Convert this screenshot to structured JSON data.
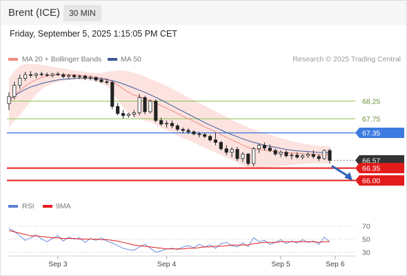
{
  "header": {
    "instrument": "Brent (ICE)",
    "timeframe": "30 MIN"
  },
  "datetime": "Friday, September 5, 2025 1:15:05 PM CET",
  "legend": {
    "main": [
      {
        "label": "MA 20 + Bollinger Bands",
        "color": "#f28b82"
      },
      {
        "label": "MA 50",
        "color": "#3c5a99"
      }
    ],
    "rsi": [
      {
        "label": "RSI",
        "color": "#5b7fd6"
      },
      {
        "label": "9MA",
        "color": "#e31b1b"
      }
    ]
  },
  "credit": "Research © 2025 Trading Central",
  "chart_data": {
    "type": "line",
    "main_panel": {
      "ylim": [
        65.6,
        69.2
      ],
      "levels": [
        {
          "value": 68.25,
          "label": "68.25",
          "style": "green-line",
          "color": "#8bc34a"
        },
        {
          "value": 67.75,
          "label": "67.75",
          "style": "green-line",
          "color": "#8bc34a"
        },
        {
          "value": 67.35,
          "label": "67.35",
          "style": "pivot",
          "color": "#3d7be0"
        },
        {
          "value": 66.57,
          "label": "66.57",
          "style": "last-price",
          "color": "#333333"
        },
        {
          "value": 66.35,
          "label": "66.35",
          "style": "support",
          "color": "#e31b1b"
        },
        {
          "value": 66.0,
          "label": "66.00",
          "style": "support",
          "color": "#e31b1b"
        }
      ],
      "arrow_direction": "down",
      "candles": [
        [
          68.18,
          68.5,
          68.0,
          68.38
        ],
        [
          68.38,
          68.8,
          68.3,
          68.7
        ],
        [
          68.7,
          69.0,
          68.6,
          68.9
        ],
        [
          68.9,
          69.08,
          68.82,
          69.0
        ],
        [
          69.0,
          69.1,
          68.92,
          68.98
        ],
        [
          68.98,
          69.06,
          68.9,
          69.02
        ],
        [
          69.02,
          69.08,
          68.95,
          69.0
        ],
        [
          69.0,
          69.06,
          68.94,
          68.98
        ],
        [
          68.98,
          69.05,
          68.92,
          69.02
        ],
        [
          69.02,
          69.08,
          68.96,
          69.0
        ],
        [
          69.0,
          69.05,
          68.9,
          68.95
        ],
        [
          68.95,
          69.02,
          68.88,
          68.98
        ],
        [
          68.98,
          69.02,
          68.9,
          68.94
        ],
        [
          68.94,
          69.0,
          68.88,
          68.96
        ],
        [
          68.96,
          69.0,
          68.85,
          68.9
        ],
        [
          68.9,
          68.98,
          68.84,
          68.92
        ],
        [
          68.92,
          68.95,
          68.8,
          68.85
        ],
        [
          68.85,
          68.92,
          68.76,
          68.8
        ],
        [
          68.8,
          68.88,
          68.72,
          68.78
        ],
        [
          68.78,
          68.82,
          68.02,
          68.1
        ],
        [
          68.1,
          68.2,
          67.85,
          67.9
        ],
        [
          67.9,
          68.0,
          67.76,
          67.84
        ],
        [
          67.84,
          67.92,
          67.78,
          67.88
        ],
        [
          67.88,
          68.0,
          67.8,
          67.92
        ],
        [
          67.92,
          68.45,
          67.85,
          68.35
        ],
        [
          68.35,
          68.4,
          67.88,
          67.95
        ],
        [
          67.95,
          68.3,
          67.9,
          68.25
        ],
        [
          68.25,
          68.3,
          67.65,
          67.7
        ],
        [
          67.7,
          67.78,
          67.55,
          67.6
        ],
        [
          67.6,
          67.7,
          67.5,
          67.62
        ],
        [
          67.62,
          67.7,
          67.48,
          67.55
        ],
        [
          67.55,
          67.6,
          67.4,
          67.45
        ],
        [
          67.45,
          67.5,
          67.35,
          67.42
        ],
        [
          67.42,
          67.48,
          67.32,
          67.38
        ],
        [
          67.38,
          67.42,
          67.28,
          67.32
        ],
        [
          67.32,
          67.38,
          67.22,
          67.3
        ],
        [
          67.3,
          67.35,
          67.2,
          67.25
        ],
        [
          67.25,
          67.3,
          67.1,
          67.15
        ],
        [
          67.15,
          67.35,
          67.0,
          67.08
        ],
        [
          67.08,
          67.12,
          66.85,
          66.9
        ],
        [
          66.9,
          67.0,
          66.72,
          66.8
        ],
        [
          66.8,
          66.95,
          66.65,
          66.88
        ],
        [
          66.88,
          66.95,
          66.55,
          66.62
        ],
        [
          66.62,
          66.8,
          66.52,
          66.75
        ],
        [
          66.75,
          66.78,
          66.42,
          66.48
        ],
        [
          66.48,
          66.95,
          66.4,
          66.9
        ],
        [
          66.9,
          67.05,
          66.78,
          67.0
        ],
        [
          67.0,
          67.08,
          66.85,
          66.92
        ],
        [
          66.92,
          67.02,
          66.8,
          66.85
        ],
        [
          66.85,
          66.9,
          66.7,
          66.75
        ],
        [
          66.75,
          66.85,
          66.66,
          66.8
        ],
        [
          66.8,
          66.86,
          66.65,
          66.7
        ],
        [
          66.7,
          66.78,
          66.6,
          66.72
        ],
        [
          66.72,
          66.8,
          66.62,
          66.66
        ],
        [
          66.66,
          66.75,
          66.6,
          66.7
        ],
        [
          66.7,
          66.8,
          66.64,
          66.74
        ],
        [
          66.74,
          66.85,
          66.62,
          66.68
        ],
        [
          66.68,
          66.75,
          66.55,
          66.62
        ],
        [
          66.62,
          66.88,
          66.58,
          66.85
        ],
        [
          66.85,
          66.9,
          66.48,
          66.57
        ]
      ],
      "ma20": [
        68.2,
        68.4,
        68.55,
        68.68,
        68.78,
        68.86,
        68.92,
        68.96,
        68.98,
        69.0,
        69.0,
        69.0,
        68.99,
        68.98,
        68.96,
        68.95,
        68.93,
        68.9,
        68.88,
        68.8,
        68.7,
        68.6,
        68.5,
        68.42,
        68.38,
        68.32,
        68.27,
        68.2,
        68.12,
        68.05,
        67.98,
        67.9,
        67.82,
        67.75,
        67.68,
        67.6,
        67.52,
        67.45,
        67.38,
        67.3,
        67.22,
        67.15,
        67.08,
        67.0,
        66.93,
        66.9,
        66.88,
        66.86,
        66.84,
        66.82,
        66.8,
        66.79,
        66.78,
        66.77,
        66.76,
        66.75,
        66.74,
        66.73,
        66.73,
        66.72
      ],
      "ma50": [
        68.3,
        68.4,
        68.5,
        68.58,
        68.65,
        68.7,
        68.75,
        68.79,
        68.82,
        68.85,
        68.87,
        68.88,
        68.89,
        68.9,
        68.9,
        68.9,
        68.89,
        68.88,
        68.86,
        68.83,
        68.79,
        68.74,
        68.68,
        68.62,
        68.56,
        68.5,
        68.43,
        68.36,
        68.28,
        68.2,
        68.12,
        68.04,
        67.96,
        67.88,
        67.8,
        67.72,
        67.64,
        67.57,
        67.5,
        67.43,
        67.36,
        67.3,
        67.24,
        67.18,
        67.13,
        67.08,
        67.04,
        67.0,
        66.97,
        66.94,
        66.91,
        66.88,
        66.86,
        66.84,
        66.83,
        66.82,
        66.81,
        66.8,
        66.79,
        66.78
      ],
      "bb_upper": [
        68.9,
        69.1,
        69.25,
        69.3,
        69.3,
        69.3,
        69.28,
        69.25,
        69.22,
        69.2,
        69.18,
        69.15,
        69.12,
        69.1,
        69.08,
        69.06,
        69.05,
        69.05,
        69.08,
        69.1,
        69.12,
        69.12,
        69.1,
        69.05,
        69.0,
        68.95,
        68.88,
        68.82,
        68.75,
        68.68,
        68.6,
        68.52,
        68.44,
        68.36,
        68.28,
        68.2,
        68.12,
        68.04,
        67.96,
        67.88,
        67.8,
        67.72,
        67.65,
        67.58,
        67.5,
        67.45,
        67.4,
        67.35,
        67.3,
        67.25,
        67.2,
        67.16,
        67.12,
        67.08,
        67.05,
        67.02,
        67.0,
        66.98,
        66.98,
        66.97
      ],
      "bb_lower": [
        67.5,
        67.7,
        67.85,
        68.05,
        68.25,
        68.45,
        68.58,
        68.68,
        68.74,
        68.8,
        68.82,
        68.85,
        68.86,
        68.86,
        68.84,
        68.84,
        68.81,
        68.75,
        68.68,
        68.5,
        68.28,
        68.08,
        67.9,
        67.79,
        67.76,
        67.69,
        67.66,
        67.58,
        67.49,
        67.42,
        67.36,
        67.28,
        67.2,
        67.14,
        67.08,
        67.0,
        66.92,
        66.86,
        66.8,
        66.72,
        66.64,
        66.58,
        66.51,
        66.42,
        66.36,
        66.35,
        66.36,
        66.37,
        66.38,
        66.39,
        66.4,
        66.42,
        66.44,
        66.46,
        66.47,
        66.48,
        66.48,
        66.48,
        66.48,
        66.47
      ]
    },
    "x_ticks": [
      {
        "index": 9,
        "label": "Sep 3"
      },
      {
        "index": 29,
        "label": "Sep 4"
      },
      {
        "index": 50,
        "label": "Sep 5"
      },
      {
        "index": 60,
        "label": "Sep 6"
      }
    ],
    "rsi_panel": {
      "ylim": [
        20,
        80
      ],
      "levels": [
        {
          "value": 70,
          "label": "70"
        },
        {
          "value": 50,
          "label": "50"
        },
        {
          "value": 30,
          "label": "30"
        }
      ],
      "rsi": [
        66,
        62,
        55,
        48,
        52,
        56,
        50,
        46,
        51,
        55,
        47,
        53,
        50,
        52,
        45,
        51,
        48,
        52,
        47,
        44,
        40,
        36,
        34,
        33,
        38,
        42,
        36,
        30,
        32,
        35,
        36,
        34,
        38,
        40,
        37,
        42,
        38,
        41,
        36,
        43,
        45,
        40,
        38,
        44,
        39,
        52,
        46,
        48,
        42,
        45,
        49,
        43,
        47,
        44,
        49,
        45,
        47,
        42,
        53,
        46
      ],
      "rsi_ma9": [
        63,
        61,
        59,
        57,
        55,
        55,
        54,
        53,
        52,
        52,
        51,
        51,
        51,
        50,
        50,
        50,
        50,
        49,
        49,
        48,
        47,
        45,
        43,
        41,
        40,
        39,
        38,
        37,
        36,
        35,
        35,
        35,
        35,
        36,
        36,
        37,
        38,
        38,
        39,
        39,
        40,
        41,
        41,
        41,
        41,
        43,
        44,
        45,
        45,
        45,
        46,
        46,
        46,
        46,
        46,
        46,
        46,
        45,
        46,
        46
      ]
    }
  }
}
